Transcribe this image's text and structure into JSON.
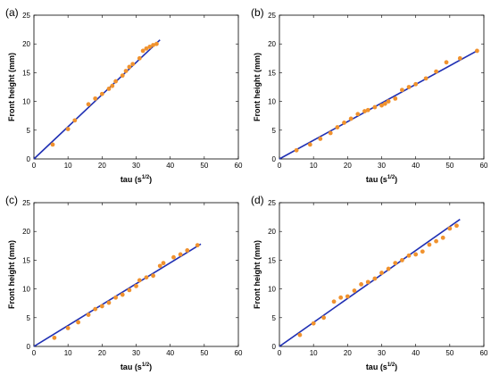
{
  "chart_data": [
    {
      "type": "scatter",
      "panel_label": "(a)",
      "xlabel_main": "tau (s",
      "xlabel_sup": "1/2",
      "xlabel_end": ")",
      "ylabel": "Front height (mm)",
      "xlim": [
        0,
        60
      ],
      "ylim": [
        0,
        25
      ],
      "xticks": [
        0,
        10,
        20,
        30,
        40,
        50,
        60
      ],
      "yticks": [
        0,
        5,
        10,
        15,
        20,
        25
      ],
      "points": {
        "color": "#F0922E",
        "x": [
          5.5,
          10,
          12,
          16,
          18,
          20,
          22,
          23,
          24,
          26,
          27,
          28,
          29,
          31,
          32,
          33,
          34,
          35,
          36
        ],
        "y": [
          2.5,
          5.2,
          6.7,
          9.5,
          10.5,
          11.3,
          12.2,
          12.7,
          13.5,
          14.5,
          15.3,
          16.0,
          16.5,
          17.5,
          18.8,
          19.2,
          19.5,
          19.8,
          20.0
        ]
      },
      "fit_line": {
        "color": "#1F2FB3",
        "x": [
          0,
          37
        ],
        "y": [
          0,
          20.7
        ]
      }
    },
    {
      "type": "scatter",
      "panel_label": "(b)",
      "xlabel_main": "tau (s",
      "xlabel_sup": "1/2",
      "xlabel_end": ")",
      "ylabel": "Front height (mm)",
      "xlim": [
        0,
        60
      ],
      "ylim": [
        0,
        25
      ],
      "xticks": [
        0,
        10,
        20,
        30,
        40,
        50,
        60
      ],
      "yticks": [
        0,
        5,
        10,
        15,
        20,
        25
      ],
      "points": {
        "color": "#F0922E",
        "x": [
          5,
          9,
          12,
          15,
          17,
          19,
          21,
          23,
          25,
          26,
          28,
          30,
          31,
          32,
          34,
          36,
          38,
          40,
          43,
          46,
          49,
          53,
          58
        ],
        "y": [
          1.5,
          2.5,
          3.5,
          4.5,
          5.5,
          6.3,
          7.0,
          7.8,
          8.3,
          8.5,
          9.0,
          9.3,
          9.6,
          10.0,
          10.5,
          12.0,
          12.5,
          13.0,
          14.0,
          15.2,
          16.8,
          17.5,
          18.8
        ]
      },
      "fit_line": {
        "color": "#1F2FB3",
        "x": [
          0,
          58
        ],
        "y": [
          0,
          18.8
        ]
      }
    },
    {
      "type": "scatter",
      "panel_label": "(c)",
      "xlabel_main": "tau (s",
      "xlabel_sup": "1/2",
      "xlabel_end": ")",
      "ylabel": "Front height (mm)",
      "xlim": [
        0,
        60
      ],
      "ylim": [
        0,
        25
      ],
      "xticks": [
        0,
        10,
        20,
        30,
        40,
        50,
        60
      ],
      "yticks": [
        0,
        5,
        10,
        15,
        20,
        25
      ],
      "points": {
        "color": "#F0922E",
        "x": [
          6,
          10,
          13,
          16,
          18,
          20,
          22,
          24,
          26,
          28,
          30,
          31,
          33,
          35,
          37,
          38,
          41,
          43,
          45,
          48
        ],
        "y": [
          1.5,
          3.2,
          4.2,
          5.5,
          6.5,
          7.0,
          7.6,
          8.5,
          9.0,
          9.8,
          10.5,
          11.5,
          12.0,
          12.3,
          14.0,
          14.5,
          15.5,
          16.0,
          16.7,
          17.6
        ]
      },
      "fit_line": {
        "color": "#1F2FB3",
        "x": [
          0,
          49
        ],
        "y": [
          0,
          17.8
        ]
      }
    },
    {
      "type": "scatter",
      "panel_label": "(d)",
      "xlabel_main": "tau (s",
      "xlabel_sup": "1/2",
      "xlabel_end": ")",
      "ylabel": "Front height (mm)",
      "xlim": [
        0,
        60
      ],
      "ylim": [
        0,
        25
      ],
      "xticks": [
        0,
        10,
        20,
        30,
        40,
        50,
        60
      ],
      "yticks": [
        0,
        5,
        10,
        15,
        20,
        25
      ],
      "points": {
        "color": "#F0922E",
        "x": [
          6,
          10,
          13,
          16,
          18,
          20,
          22,
          24,
          26,
          28,
          30,
          32,
          34,
          36,
          38,
          40,
          42,
          44,
          46,
          48,
          50,
          52
        ],
        "y": [
          2.0,
          4.0,
          5.0,
          7.8,
          8.5,
          8.7,
          9.7,
          10.8,
          11.2,
          11.8,
          12.8,
          13.5,
          14.5,
          15.0,
          15.8,
          16.0,
          16.5,
          17.7,
          18.3,
          18.9,
          20.5,
          21.0
        ]
      },
      "fit_line": {
        "color": "#1F2FB3",
        "x": [
          0,
          53
        ],
        "y": [
          0,
          22.1
        ]
      }
    }
  ]
}
